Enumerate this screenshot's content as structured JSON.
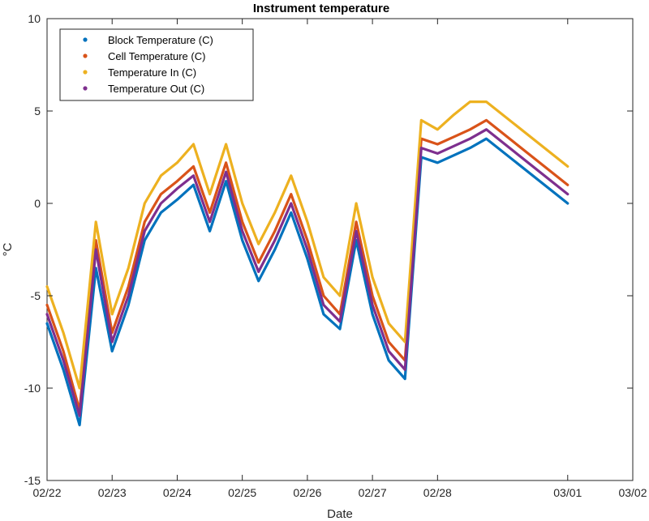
{
  "chart_data": {
    "type": "line",
    "title": "Instrument temperature",
    "xlabel": "Date",
    "ylabel": "°C",
    "x_ticks": [
      "02/22",
      "02/23",
      "02/24",
      "02/25",
      "02/26",
      "02/27",
      "02/28",
      "03/01",
      "03/02"
    ],
    "x_range": [
      "02/22",
      "03/02"
    ],
    "ylim": [
      -15,
      10
    ],
    "y_ticks": [
      -15,
      -10,
      -5,
      0,
      5,
      10
    ],
    "grid": false,
    "legend_position": "top-left",
    "x": [
      "02/22 00:00",
      "02/22 06:00",
      "02/22 12:00",
      "02/22 18:00",
      "02/23 00:00",
      "02/23 06:00",
      "02/23 12:00",
      "02/23 18:00",
      "02/24 00:00",
      "02/24 06:00",
      "02/24 12:00",
      "02/24 18:00",
      "02/25 00:00",
      "02/25 06:00",
      "02/25 12:00",
      "02/25 18:00",
      "02/26 00:00",
      "02/26 06:00",
      "02/26 12:00",
      "02/26 18:00",
      "02/27 00:00",
      "02/27 06:00",
      "02/27 12:00",
      "02/27 18:00",
      "02/28 00:00",
      "02/28 06:00",
      "02/28 12:00",
      "02/28 18:00",
      "03/01 00:00"
    ],
    "series": [
      {
        "name": "Block Temperature (C)",
        "color": "#0072BD",
        "values": [
          -6.5,
          -9.0,
          -12.0,
          -3.5,
          -8.0,
          -5.5,
          -2.0,
          -0.5,
          0.2,
          1.0,
          -1.5,
          1.2,
          -2.0,
          -4.2,
          -2.5,
          -0.5,
          -3.0,
          -6.0,
          -6.8,
          -2.0,
          -6.0,
          -8.5,
          -9.5,
          2.5,
          2.2,
          2.6,
          3.0,
          3.5,
          0.0
        ]
      },
      {
        "name": "Cell Temperature (C)",
        "color": "#D95319",
        "values": [
          -5.5,
          -8.0,
          -11.2,
          -2.0,
          -7.0,
          -4.5,
          -1.0,
          0.5,
          1.2,
          2.0,
          -0.5,
          2.2,
          -1.0,
          -3.2,
          -1.5,
          0.5,
          -2.0,
          -5.0,
          -6.0,
          -1.0,
          -5.0,
          -7.5,
          -8.5,
          3.5,
          3.2,
          3.6,
          4.0,
          4.5,
          1.0
        ]
      },
      {
        "name": "Temperature In (C)",
        "color": "#EDB120",
        "values": [
          -4.5,
          -7.0,
          -10.0,
          -1.0,
          -6.0,
          -3.5,
          0.0,
          1.5,
          2.2,
          3.2,
          0.5,
          3.2,
          0.0,
          -2.2,
          -0.5,
          1.5,
          -1.0,
          -4.0,
          -5.0,
          0.0,
          -4.0,
          -6.5,
          -7.5,
          4.5,
          4.0,
          4.8,
          5.5,
          5.5,
          2.0
        ]
      },
      {
        "name": "Temperature Out (C)",
        "color": "#7E2F8E",
        "values": [
          -6.0,
          -8.5,
          -11.5,
          -2.5,
          -7.5,
          -5.0,
          -1.5,
          0.0,
          0.8,
          1.5,
          -1.0,
          1.7,
          -1.5,
          -3.7,
          -2.0,
          0.0,
          -2.5,
          -5.5,
          -6.4,
          -1.5,
          -5.5,
          -8.0,
          -9.0,
          3.0,
          2.7,
          3.1,
          3.5,
          4.0,
          0.5
        ]
      }
    ]
  }
}
